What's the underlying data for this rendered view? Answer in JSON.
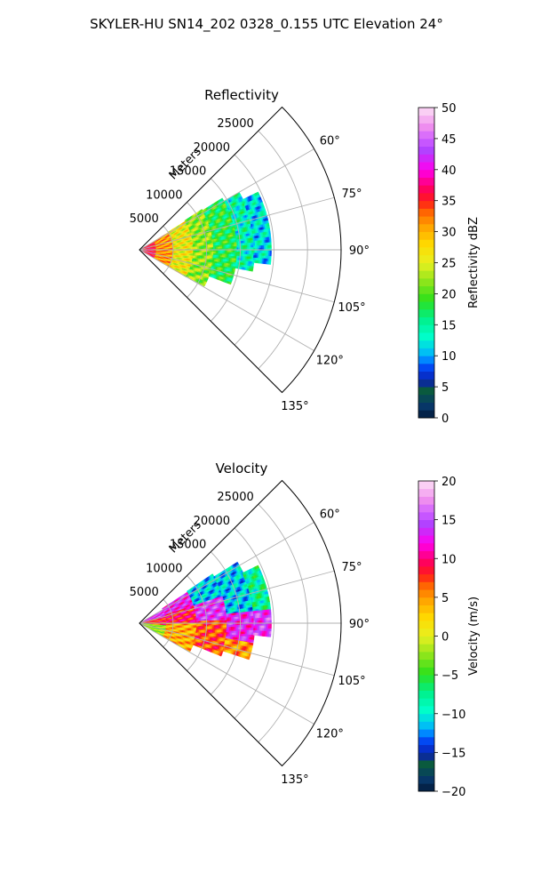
{
  "figure": {
    "suptitle": "SKYLER-HU  SN14_202  0328_0.155 UTC Elevation 24°"
  },
  "chart_data": [
    {
      "type": "heatmap",
      "projection": "polar-sector",
      "title": "Reflectivity",
      "radial_label": "Meters",
      "radial_ticks": [
        5000,
        10000,
        15000,
        20000,
        25000
      ],
      "radial_tick_labels": [
        "5000",
        "10000",
        "15000",
        "20000",
        "25000"
      ],
      "rlim": [
        0,
        30000
      ],
      "theta_ticks_deg": [
        60,
        75,
        90,
        105,
        120,
        135
      ],
      "theta_tick_labels": [
        "60°",
        "75°",
        "90°",
        "105°",
        "120°",
        "135°"
      ],
      "theta_range_deg": [
        45,
        135
      ],
      "grid": true,
      "colorbar": {
        "label": "Reflectivity dBZ",
        "range": [
          0,
          50
        ],
        "ticks": [
          0,
          5,
          10,
          15,
          20,
          25,
          30,
          35,
          40,
          45,
          50
        ],
        "tick_labels": [
          "0",
          "5",
          "10",
          "15",
          "20",
          "25",
          "30",
          "35",
          "40",
          "45",
          "50"
        ],
        "levels": 40,
        "stops": [
          [
            0,
            "#021a3a"
          ],
          [
            0.04,
            "#07386a"
          ],
          [
            0.09,
            "#0a5c3c"
          ],
          [
            0.12,
            "#0a1fb0"
          ],
          [
            0.17,
            "#0050ff"
          ],
          [
            0.2,
            "#00b0ff"
          ],
          [
            0.26,
            "#00ffcc"
          ],
          [
            0.32,
            "#00f08a"
          ],
          [
            0.38,
            "#2ee01a"
          ],
          [
            0.44,
            "#8ee51b"
          ],
          [
            0.5,
            "#e8f020"
          ],
          [
            0.56,
            "#ffd900"
          ],
          [
            0.62,
            "#ffa000"
          ],
          [
            0.66,
            "#ff6a00"
          ],
          [
            0.7,
            "#ff1a1a"
          ],
          [
            0.74,
            "#ff0060"
          ],
          [
            0.8,
            "#ff00ee"
          ],
          [
            0.86,
            "#b040ff"
          ],
          [
            0.9,
            "#d060ff"
          ],
          [
            0.94,
            "#f090ee"
          ],
          [
            1,
            "#fde0f6"
          ]
        ]
      },
      "field": [
        {
          "r": [
            0,
            2500
          ],
          "az": [
            61,
            118
          ],
          "value": 36
        },
        {
          "r": [
            2500,
            5000
          ],
          "az": [
            59,
            120
          ],
          "value": 31
        },
        {
          "r": [
            5000,
            8000
          ],
          "az": [
            58,
            120
          ],
          "value": 26
        },
        {
          "r": [
            8000,
            11000
          ],
          "az": [
            57,
            119
          ],
          "value": 22
        },
        {
          "r": [
            11000,
            14500
          ],
          "az": [
            58,
            110
          ],
          "value": 18
        },
        {
          "r": [
            14500,
            17000
          ],
          "az": [
            60,
            100
          ],
          "value": 14
        },
        {
          "r": [
            17000,
            19500
          ],
          "az": [
            64,
            96
          ],
          "value": 12
        }
      ]
    },
    {
      "type": "heatmap",
      "projection": "polar-sector",
      "title": "Velocity",
      "radial_label": "Meters",
      "radial_ticks": [
        5000,
        10000,
        15000,
        20000,
        25000
      ],
      "radial_tick_labels": [
        "5000",
        "10000",
        "15000",
        "20000",
        "25000"
      ],
      "rlim": [
        0,
        30000
      ],
      "theta_ticks_deg": [
        60,
        75,
        90,
        105,
        120,
        135
      ],
      "theta_tick_labels": [
        "60°",
        "75°",
        "90°",
        "105°",
        "120°",
        "135°"
      ],
      "theta_range_deg": [
        45,
        135
      ],
      "grid": true,
      "colorbar": {
        "label": "Velocity (m/s)",
        "range": [
          -20,
          20
        ],
        "ticks": [
          -20,
          -15,
          -10,
          -5,
          0,
          5,
          10,
          15,
          20
        ],
        "tick_labels": [
          "−20",
          "−15",
          "−10",
          "−5",
          "0",
          "5",
          "10",
          "15",
          "20"
        ],
        "levels": 40,
        "stops": [
          [
            0,
            "#021a3a"
          ],
          [
            0.04,
            "#07386a"
          ],
          [
            0.09,
            "#0a5c3c"
          ],
          [
            0.12,
            "#0a1fb0"
          ],
          [
            0.17,
            "#0050ff"
          ],
          [
            0.2,
            "#00b0ff"
          ],
          [
            0.26,
            "#00ffcc"
          ],
          [
            0.32,
            "#00f08a"
          ],
          [
            0.38,
            "#2ee01a"
          ],
          [
            0.44,
            "#8ee51b"
          ],
          [
            0.5,
            "#e8f020"
          ],
          [
            0.56,
            "#ffd900"
          ],
          [
            0.62,
            "#ffa000"
          ],
          [
            0.66,
            "#ff6a00"
          ],
          [
            0.7,
            "#ff1a1a"
          ],
          [
            0.74,
            "#ff0060"
          ],
          [
            0.8,
            "#ff00ee"
          ],
          [
            0.86,
            "#b040ff"
          ],
          [
            0.9,
            "#d060ff"
          ],
          [
            0.94,
            "#f090ee"
          ],
          [
            1,
            "#fde0f6"
          ]
        ]
      },
      "field": [
        {
          "r": [
            0,
            4000
          ],
          "az": [
            60,
            75
          ],
          "value": 14
        },
        {
          "r": [
            0,
            4000
          ],
          "az": [
            75,
            95
          ],
          "value": 8
        },
        {
          "r": [
            0,
            4000
          ],
          "az": [
            95,
            118
          ],
          "value": -2
        },
        {
          "r": [
            4000,
            8500
          ],
          "az": [
            57,
            72
          ],
          "value": 13
        },
        {
          "r": [
            4000,
            8500
          ],
          "az": [
            72,
            90
          ],
          "value": 9
        },
        {
          "r": [
            4000,
            8500
          ],
          "az": [
            90,
            120
          ],
          "value": 4
        },
        {
          "r": [
            8500,
            13000
          ],
          "az": [
            56,
            72
          ],
          "value": -11
        },
        {
          "r": [
            8500,
            13000
          ],
          "az": [
            72,
            88
          ],
          "value": 14
        },
        {
          "r": [
            8500,
            13000
          ],
          "az": [
            88,
            112
          ],
          "value": 7
        },
        {
          "r": [
            13000,
            17000
          ],
          "az": [
            58,
            84
          ],
          "value": -11
        },
        {
          "r": [
            13000,
            17000
          ],
          "az": [
            84,
            100
          ],
          "value": 13
        },
        {
          "r": [
            13000,
            17000
          ],
          "az": [
            100,
            108
          ],
          "value": 5
        },
        {
          "r": [
            17000,
            19500
          ],
          "az": [
            64,
            84
          ],
          "value": -8
        },
        {
          "r": [
            17000,
            19500
          ],
          "az": [
            84,
            96
          ],
          "value": 14
        }
      ]
    }
  ]
}
